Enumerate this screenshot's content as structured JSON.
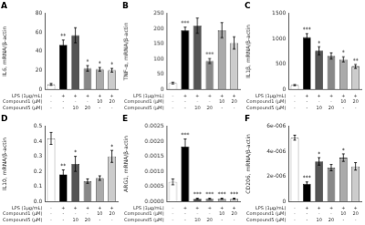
{
  "chart_data": [
    {
      "type": "bar",
      "title": "A",
      "ylabel": "IL6, mRNA/β-actin",
      "categories": [
        null,
        null,
        null,
        null,
        null,
        null
      ],
      "values": [
        5,
        47,
        57,
        22,
        21,
        20
      ],
      "errors": [
        1,
        5,
        8,
        3,
        2,
        2
      ],
      "colors": [
        "white",
        "black",
        "#555555",
        "#888888",
        "#aaaaaa",
        "#cccccc"
      ],
      "significance": [
        null,
        "**",
        null,
        "*",
        "*",
        "*"
      ],
      "ylim": [
        0,
        80
      ],
      "yticks": [
        0,
        20,
        40,
        60,
        80
      ],
      "grid": false,
      "tick_labels": "y",
      "annotations": [
        {
          "label": "LPS (1μg/mL)",
          "values": [
            "-",
            "+",
            "+",
            "+",
            "+",
            "+"
          ]
        },
        {
          "label": "Compound1 (μM)",
          "values": [
            "-",
            "-",
            "-",
            "-",
            "10",
            "20"
          ]
        },
        {
          "label": "Compound5 (μM)",
          "values": [
            "-",
            "-",
            "10",
            "20",
            "-",
            "-"
          ]
        }
      ]
    },
    {
      "type": "bar",
      "title": "B",
      "ylabel": "TNF-α, mRNA/β-actin",
      "categories": [
        null,
        null,
        null,
        null,
        null,
        null
      ],
      "values": [
        20,
        195,
        210,
        93,
        195,
        153
      ],
      "errors": [
        3,
        10,
        25,
        8,
        25,
        20
      ],
      "colors": [
        "white",
        "black",
        "#555555",
        "#888888",
        "#aaaaaa",
        "#cccccc"
      ],
      "significance": [
        null,
        "***",
        null,
        "***",
        null,
        null
      ],
      "ylim": [
        0,
        250
      ],
      "yticks": [
        0,
        50,
        100,
        150,
        200,
        250
      ],
      "grid": false,
      "tick_labels": "y",
      "annotations": [
        {
          "label": "LPS (1μg/mL)",
          "values": [
            "-",
            "+",
            "+",
            "+",
            "+",
            "+"
          ]
        },
        {
          "label": "Compound1 (μM)",
          "values": [
            "-",
            "-",
            "-",
            "-",
            "10",
            "20"
          ]
        },
        {
          "label": "Compound5 (μM)",
          "values": [
            "-",
            "-",
            "10",
            "20",
            "-",
            "-"
          ]
        }
      ]
    },
    {
      "type": "bar",
      "title": "C",
      "ylabel": "IL1β, mRNA/β-actin",
      "categories": [
        null,
        null,
        null,
        null,
        null,
        null
      ],
      "values": [
        80,
        1030,
        760,
        660,
        590,
        450
      ],
      "errors": [
        10,
        70,
        80,
        60,
        50,
        40
      ],
      "colors": [
        "white",
        "black",
        "#555555",
        "#888888",
        "#aaaaaa",
        "#cccccc"
      ],
      "significance": [
        null,
        "***",
        "*",
        null,
        "*",
        "**"
      ],
      "ylim": [
        0,
        1500
      ],
      "yticks": [
        0,
        500,
        1000,
        1500
      ],
      "grid": false,
      "tick_labels": "y",
      "annotations": [
        {
          "label": "LPS (1μg/mL)",
          "values": [
            "-",
            "+",
            "+",
            "+",
            "+",
            "+"
          ]
        },
        {
          "label": "Compound1 (μM)",
          "values": [
            "-",
            "-",
            "-",
            "-",
            "10",
            "20"
          ]
        },
        {
          "label": "Compound5 (μM)",
          "values": [
            "-",
            "-",
            "10",
            "20",
            "-",
            "-"
          ]
        }
      ]
    },
    {
      "type": "bar",
      "title": "D",
      "ylabel": "IL10, mRNA/β-actin",
      "categories": [
        null,
        null,
        null,
        null,
        null,
        null
      ],
      "values": [
        0.42,
        0.18,
        0.25,
        0.135,
        0.155,
        0.3
      ],
      "errors": [
        0.04,
        0.03,
        0.05,
        0.015,
        0.015,
        0.04
      ],
      "colors": [
        "white",
        "black",
        "#555555",
        "#888888",
        "#aaaaaa",
        "#cccccc"
      ],
      "significance": [
        null,
        "**",
        "*",
        null,
        null,
        "*"
      ],
      "ylim": [
        0,
        0.5
      ],
      "yticks": [
        {
          "value": 0,
          "label": "0.0"
        },
        0.1,
        0.2,
        0.3,
        0.4,
        0.5
      ],
      "grid": false,
      "tick_labels": "y",
      "annotations": [
        {
          "label": "LPS (1μg/mL)",
          "values": [
            "-",
            "+",
            "+",
            "+",
            "+",
            "+"
          ]
        },
        {
          "label": "Compound1 (μM)",
          "values": [
            "-",
            "-",
            "-",
            "-",
            "10",
            "20"
          ]
        },
        {
          "label": "Compound5 (μM)",
          "values": [
            "-",
            "-",
            "10",
            "20",
            "-",
            "-"
          ]
        }
      ]
    },
    {
      "type": "bar",
      "title": "E",
      "ylabel": "ARG1, mRNA/β-actin",
      "categories": [
        null,
        null,
        null,
        null,
        null,
        null
      ],
      "values": [
        0.00065,
        0.00183,
        8.5e-05,
        8.5e-05,
        8.5e-05,
        8.5e-05
      ],
      "errors": [
        0.0001,
        0.00025,
        2e-05,
        2e-05,
        2e-05,
        2e-05
      ],
      "colors": [
        "white",
        "black",
        "#555555",
        "#888888",
        "#aaaaaa",
        "#cccccc"
      ],
      "significance": [
        null,
        "***",
        "***",
        "***",
        "***",
        "***"
      ],
      "ylim": [
        0,
        0.0025
      ],
      "yticks": [
        {
          "value": 0,
          "label": "0.0000"
        },
        {
          "value": 0.0005,
          "label": "0.0005"
        },
        {
          "value": 0.001,
          "label": "0.0010"
        },
        {
          "value": 0.0015,
          "label": "0.0015"
        },
        {
          "value": 0.002,
          "label": "0.0020"
        },
        {
          "value": 0.0025,
          "label": "0.0025"
        }
      ],
      "grid": false,
      "tick_labels": "y",
      "annotations": [
        {
          "label": "LPS (1μg/mL)",
          "values": [
            "-",
            "+",
            "+",
            "+",
            "+",
            "+"
          ]
        },
        {
          "label": "Compound1 (μM)",
          "values": [
            "-",
            "-",
            "-",
            "-",
            "10",
            "20"
          ]
        },
        {
          "label": "Compound5 (μM)",
          "values": [
            "-",
            "-",
            "10",
            "20",
            "-",
            "-"
          ]
        }
      ]
    },
    {
      "type": "bar",
      "title": "F",
      "ylabel": "CD206, mRNA/β-actin",
      "categories": [
        null,
        null,
        null,
        null,
        null,
        null
      ],
      "values": [
        5.1e-06,
        1.4e-06,
        3.2e-06,
        2.7e-06,
        3.5e-06,
        2.8e-06
      ],
      "errors": [
        2e-07,
        1.5e-07,
        3e-07,
        2.5e-07,
        3e-07,
        3e-07
      ],
      "colors": [
        "white",
        "black",
        "#555555",
        "#888888",
        "#aaaaaa",
        "#cccccc"
      ],
      "significance": [
        null,
        "***",
        "*",
        null,
        "*",
        null
      ],
      "ylim": [
        0,
        6e-06
      ],
      "yticks": [
        0,
        {
          "value": 2e-06,
          "label": "2e-006"
        },
        {
          "value": 4e-06,
          "label": "4e-006"
        },
        {
          "value": 6e-06,
          "label": "6e-006"
        }
      ],
      "grid": false,
      "tick_labels": "y",
      "annotations": [
        {
          "label": "LPS (1μg/mL)",
          "values": [
            "-",
            "+",
            "+",
            "+",
            "+",
            "+"
          ]
        },
        {
          "label": "Compound1 (μM)",
          "values": [
            "-",
            "-",
            "-",
            "-",
            "10",
            "20"
          ]
        },
        {
          "label": "Compound5 (μM)",
          "values": [
            "-",
            "-",
            "10",
            "20",
            "-",
            "-"
          ]
        }
      ]
    }
  ]
}
